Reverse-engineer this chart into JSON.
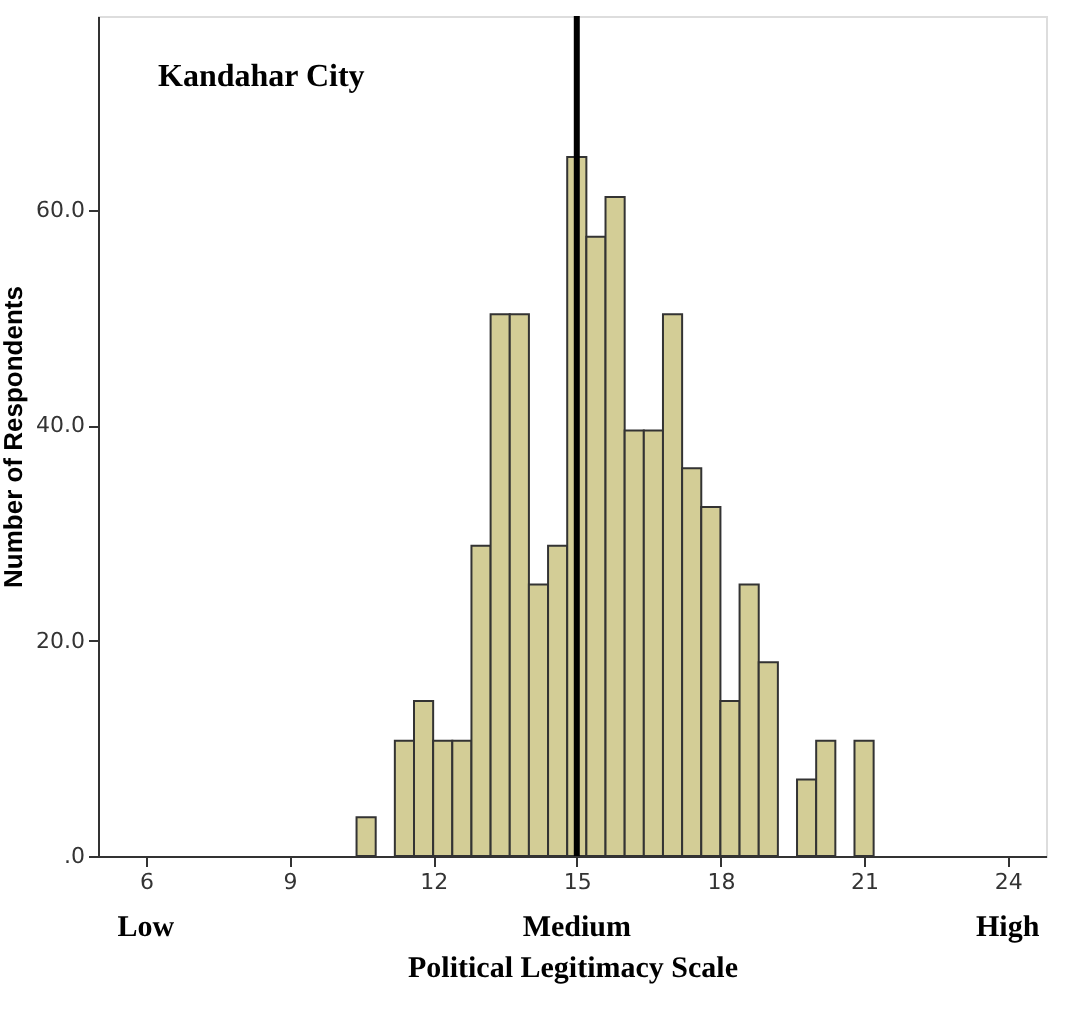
{
  "chart_data": {
    "type": "histogram",
    "xlabel": "Political Legitimacy Scale",
    "ylabel": "Number of Respondents",
    "bins": [
      10.4,
      10.8,
      11.2,
      11.6,
      12.0,
      12.4,
      12.8,
      13.2,
      13.6,
      14.0,
      14.4,
      14.8,
      15.2,
      15.6,
      16.0,
      16.4,
      16.8,
      17.2,
      17.6,
      18.0,
      18.4,
      18.8,
      19.2,
      19.6,
      20.0,
      20.4,
      20.8,
      21.2
    ],
    "values": [
      3.6,
      0,
      10.7,
      14.4,
      10.7,
      10.7,
      28.8,
      50.3,
      50.3,
      25.2,
      28.8,
      64.9,
      57.5,
      61.2,
      39.5,
      39.5,
      50.3,
      36.0,
      32.4,
      14.4,
      25.2,
      18.0,
      0,
      7.1,
      10.7,
      0,
      10.7
    ],
    "color": "#d3cd96",
    "xlim": [
      5,
      24.8
    ],
    "xticks": [
      6,
      9,
      12,
      15,
      18,
      21,
      24
    ],
    "ylim": [
      0,
      78
    ],
    "yticks": [
      {
        "value": 0,
        "label": ".0"
      },
      {
        "value": 20,
        "label": "20.0"
      },
      {
        "value": 40,
        "label": "40.0"
      },
      {
        "value": 60,
        "label": "60.0"
      }
    ],
    "ref_lines": [
      {
        "axis": "x",
        "value": 15,
        "color": "#000000"
      }
    ],
    "annotations": [
      "Kandahar City",
      "Low",
      "Medium",
      "High"
    ],
    "grid": false
  }
}
